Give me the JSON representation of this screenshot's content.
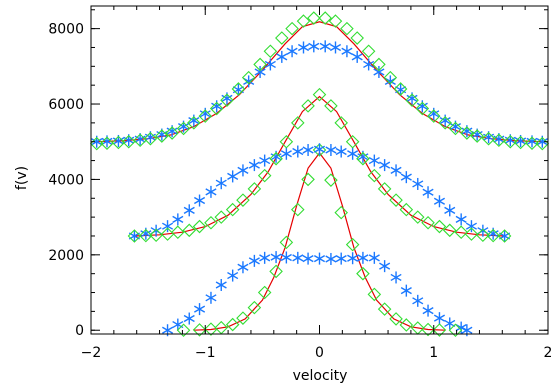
{
  "chart_data": {
    "type": "line",
    "title": "",
    "xlabel": "velocity",
    "ylabel": "f(v)",
    "xlim": [
      -2,
      2
    ],
    "ylim": [
      -100,
      8600
    ],
    "x_ticks": [
      -2,
      -1,
      0,
      1,
      2
    ],
    "x_tick_labels": [
      "−2",
      "−1",
      "0",
      "1",
      "2"
    ],
    "y_ticks": [
      0,
      2000,
      4000,
      6000,
      8000
    ],
    "y_tick_labels": [
      "0",
      "2000",
      "4000",
      "6000",
      "8000"
    ],
    "grid": false,
    "colors": {
      "star": "#1a78ff",
      "diamond": "#33dd33",
      "fit": "#e60000",
      "axis": "#000000"
    },
    "series": [
      {
        "marker": "star-icon",
        "x": [
          -1.33,
          -1.24,
          -1.14,
          -1.05,
          -0.95,
          -0.86,
          -0.76,
          -0.67,
          -0.57,
          -0.48,
          -0.38,
          -0.29,
          -0.19,
          -0.1,
          0.0,
          0.1,
          0.19,
          0.29,
          0.38,
          0.48,
          0.57,
          0.67,
          0.76,
          0.86,
          0.95,
          1.05,
          1.14,
          1.24,
          1.29
        ],
        "y": [
          0,
          150,
          310,
          560,
          860,
          1200,
          1450,
          1670,
          1840,
          1920,
          1940,
          1930,
          1920,
          1900,
          1900,
          1890,
          1900,
          1910,
          1920,
          1920,
          1700,
          1400,
          1050,
          780,
          520,
          320,
          180,
          70,
          0
        ]
      },
      {
        "marker": "diamond-icon",
        "x": [
          -1.19,
          -1.05,
          -0.95,
          -0.86,
          -0.76,
          -0.67,
          -0.57,
          -0.48,
          -0.38,
          -0.29,
          -0.19,
          -0.1,
          0.0,
          0.1,
          0.19,
          0.29,
          0.38,
          0.48,
          0.57,
          0.67,
          0.76,
          0.86,
          0.95,
          1.05,
          1.19
        ],
        "y": [
          0,
          10,
          30,
          70,
          150,
          320,
          600,
          1000,
          1560,
          2330,
          3200,
          4000,
          4780,
          3980,
          3120,
          2270,
          1500,
          950,
          560,
          300,
          140,
          60,
          20,
          5,
          0
        ]
      },
      {
        "marker": "none",
        "x": [
          -1.1,
          -0.95,
          -0.8,
          -0.65,
          -0.5,
          -0.4,
          -0.3,
          -0.2,
          -0.1,
          0.0,
          0.1,
          0.2,
          0.3,
          0.4,
          0.5,
          0.65,
          0.8,
          0.95,
          1.1
        ],
        "y": [
          0,
          20,
          90,
          300,
          800,
          1400,
          2200,
          3300,
          4300,
          4700,
          4300,
          3300,
          2200,
          1400,
          800,
          300,
          90,
          20,
          0
        ]
      },
      {
        "marker": "star-icon",
        "x": [
          -1.62,
          -1.52,
          -1.43,
          -1.33,
          -1.24,
          -1.14,
          -1.05,
          -0.95,
          -0.86,
          -0.76,
          -0.67,
          -0.57,
          -0.48,
          -0.38,
          -0.29,
          -0.19,
          -0.1,
          0.0,
          0.1,
          0.19,
          0.29,
          0.38,
          0.48,
          0.57,
          0.67,
          0.76,
          0.86,
          0.95,
          1.05,
          1.14,
          1.24,
          1.33,
          1.43,
          1.52,
          1.62
        ],
        "y": [
          2500,
          2560,
          2640,
          2760,
          2940,
          3180,
          3440,
          3670,
          3900,
          4080,
          4240,
          4380,
          4500,
          4600,
          4680,
          4740,
          4780,
          4800,
          4780,
          4740,
          4680,
          4600,
          4500,
          4380,
          4240,
          4060,
          3880,
          3660,
          3420,
          3180,
          2940,
          2760,
          2640,
          2560,
          2500
        ]
      },
      {
        "marker": "diamond-icon",
        "x": [
          -1.62,
          -1.52,
          -1.43,
          -1.33,
          -1.24,
          -1.14,
          -1.05,
          -0.95,
          -0.86,
          -0.76,
          -0.67,
          -0.57,
          -0.48,
          -0.38,
          -0.29,
          -0.19,
          -0.1,
          0.0,
          0.1,
          0.19,
          0.29,
          0.38,
          0.48,
          0.57,
          0.67,
          0.76,
          0.86,
          0.95,
          1.05,
          1.14,
          1.24,
          1.33,
          1.43,
          1.52,
          1.62
        ],
        "y": [
          2500,
          2510,
          2520,
          2550,
          2600,
          2650,
          2750,
          2850,
          3000,
          3200,
          3450,
          3750,
          4100,
          4550,
          5000,
          5500,
          5950,
          6250,
          5950,
          5500,
          5000,
          4550,
          4100,
          3750,
          3450,
          3200,
          3000,
          2850,
          2750,
          2650,
          2600,
          2550,
          2520,
          2510,
          2500
        ]
      },
      {
        "marker": "none",
        "x": [
          -1.62,
          -1.4,
          -1.2,
          -1.0,
          -0.8,
          -0.6,
          -0.45,
          -0.3,
          -0.15,
          0.0,
          0.15,
          0.3,
          0.45,
          0.6,
          0.8,
          1.0,
          1.2,
          1.4,
          1.62
        ],
        "y": [
          2500,
          2530,
          2600,
          2750,
          3050,
          3600,
          4200,
          5000,
          5800,
          6200,
          5800,
          5000,
          4200,
          3600,
          3050,
          2750,
          2600,
          2530,
          2500
        ]
      },
      {
        "marker": "star-icon",
        "x": [
          -1.95,
          -1.86,
          -1.76,
          -1.67,
          -1.57,
          -1.48,
          -1.38,
          -1.29,
          -1.19,
          -1.1,
          -1.0,
          -0.9,
          -0.81,
          -0.71,
          -0.62,
          -0.52,
          -0.43,
          -0.33,
          -0.24,
          -0.14,
          -0.05,
          0.05,
          0.14,
          0.24,
          0.33,
          0.43,
          0.52,
          0.62,
          0.71,
          0.81,
          0.9,
          1.0,
          1.1,
          1.19,
          1.29,
          1.38,
          1.48,
          1.57,
          1.67,
          1.76,
          1.86,
          1.95
        ],
        "y": [
          5000,
          5010,
          5020,
          5040,
          5070,
          5120,
          5190,
          5280,
          5400,
          5560,
          5740,
          5940,
          6150,
          6380,
          6600,
          6850,
          7050,
          7250,
          7400,
          7500,
          7530,
          7530,
          7500,
          7400,
          7250,
          7050,
          6850,
          6600,
          6380,
          6150,
          5940,
          5740,
          5560,
          5400,
          5280,
          5190,
          5120,
          5070,
          5040,
          5020,
          5010,
          5000
        ]
      },
      {
        "marker": "diamond-icon",
        "x": [
          -1.95,
          -1.86,
          -1.76,
          -1.67,
          -1.57,
          -1.48,
          -1.38,
          -1.29,
          -1.19,
          -1.1,
          -1.0,
          -0.9,
          -0.81,
          -0.71,
          -0.62,
          -0.52,
          -0.43,
          -0.33,
          -0.24,
          -0.14,
          -0.05,
          0.05,
          0.14,
          0.24,
          0.33,
          0.43,
          0.52,
          0.62,
          0.71,
          0.81,
          0.9,
          1.0,
          1.1,
          1.19,
          1.29,
          1.38,
          1.48,
          1.57,
          1.67,
          1.76,
          1.86,
          1.95
        ],
        "y": [
          4950,
          4960,
          4980,
          5000,
          5040,
          5080,
          5150,
          5230,
          5350,
          5500,
          5680,
          5880,
          6100,
          6400,
          6700,
          7050,
          7400,
          7750,
          8000,
          8200,
          8280,
          8280,
          8200,
          8000,
          7750,
          7400,
          7050,
          6700,
          6400,
          6100,
          5880,
          5680,
          5500,
          5350,
          5230,
          5150,
          5080,
          5040,
          5000,
          4980,
          4960,
          4950
        ]
      },
      {
        "marker": "none",
        "x": [
          -1.95,
          -1.7,
          -1.5,
          -1.3,
          -1.1,
          -0.9,
          -0.7,
          -0.5,
          -0.3,
          -0.15,
          0.0,
          0.15,
          0.3,
          0.5,
          0.7,
          0.9,
          1.1,
          1.3,
          1.5,
          1.7,
          1.95
        ],
        "y": [
          5000,
          5030,
          5080,
          5180,
          5400,
          5750,
          6250,
          6900,
          7600,
          8050,
          8180,
          8050,
          7600,
          6900,
          6250,
          5750,
          5400,
          5180,
          5080,
          5030,
          5000
        ]
      }
    ]
  }
}
